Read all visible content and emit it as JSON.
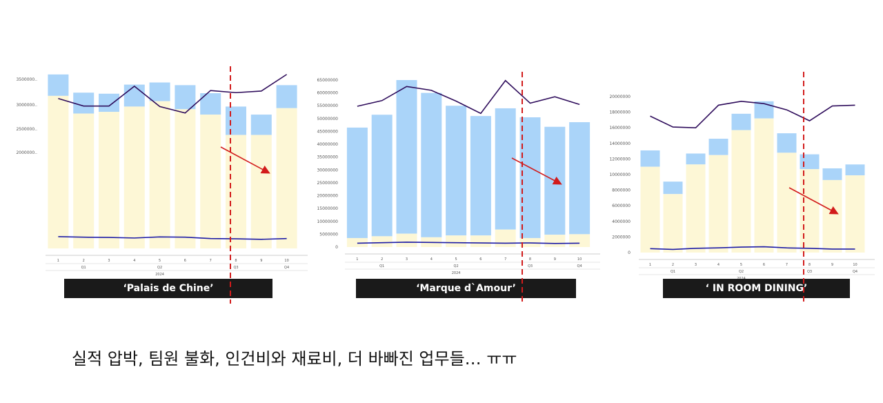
{
  "colors": {
    "bar_bottom": "#fdf7d6",
    "bar_top": "#aad4f9",
    "line_top": "#2e0c5b",
    "line_bottom": "#1b1aa6",
    "divider": "#d21b1b",
    "arrow": "#d21b1b",
    "label_bg": "#1a1a1a"
  },
  "caption": "실적 압박, 팀원 불화, 인건비와 재료비, 더 바빠진 업무들… ㅠㅠ",
  "chart_data": [
    {
      "type": "bar",
      "label": "‘Palais de Chine’",
      "categories": [
        "1",
        "2",
        "3",
        "4",
        "5",
        "6",
        "7",
        "8",
        "9",
        "10"
      ],
      "quarter_labels": [
        "Q1",
        "Q2",
        "Q3",
        "Q4"
      ],
      "year_label": "2024",
      "ytick_labels": [
        "3500000..",
        "3000000..",
        "2500000..",
        "2000000.."
      ],
      "ylim": [
        300000,
        3600000
      ],
      "series": [
        {
          "kind": "bar",
          "values": [
            3150000,
            2820000,
            2850000,
            2950000,
            3050000,
            2900000,
            2800000,
            2420000,
            2420000,
            2920000
          ]
        },
        {
          "kind": "bar",
          "values": [
            3550000,
            3210000,
            3190000,
            3360000,
            3400000,
            3350000,
            3200000,
            2950000,
            2800000,
            3350000
          ]
        },
        {
          "kind": "line",
          "values": [
            3100000,
            2960000,
            2960000,
            3330000,
            2950000,
            2830000,
            3250000,
            3210000,
            3240000,
            3550000
          ]
        },
        {
          "kind": "line",
          "values": [
            520000,
            510000,
            505000,
            495000,
            515000,
            510000,
            485000,
            480000,
            470000,
            485000
          ]
        }
      ]
    },
    {
      "type": "bar",
      "label": "‘Marque d`Amour’",
      "categories": [
        "1",
        "2",
        "3",
        "4",
        "5",
        "6",
        "7",
        "8",
        "9",
        "10"
      ],
      "quarter_labels": [
        "Q1",
        "Q2",
        "Q3",
        "Q4"
      ],
      "year_label": "2024",
      "ytick_labels": [
        "65000000",
        "60000000",
        "55000000",
        "50000000",
        "45000000",
        "40000000",
        "35000000",
        "30000000",
        "25000000",
        "20000000",
        "15000000",
        "10000000",
        "5000000",
        "0"
      ],
      "ylim": [
        0,
        65000000
      ],
      "series": [
        {
          "kind": "bar",
          "values": [
            3500000,
            4200000,
            5200000,
            3800000,
            4500000,
            4500000,
            6800000,
            3500000,
            4800000,
            5000000
          ]
        },
        {
          "kind": "bar",
          "values": [
            46500000,
            51500000,
            65000000,
            60000000,
            55000000,
            51000000,
            54000000,
            50500000,
            46800000,
            48600000
          ]
        },
        {
          "kind": "line",
          "values": [
            54800000,
            57000000,
            62500000,
            61000000,
            56800000,
            52000000,
            64800000,
            56000000,
            58500000,
            55500000
          ]
        },
        {
          "kind": "line",
          "values": [
            1500000,
            1700000,
            1900000,
            1800000,
            1700000,
            1600000,
            1500000,
            1600000,
            1400000,
            1500000
          ]
        }
      ]
    },
    {
      "type": "bar",
      "label": "‘ IN ROOM DINING’",
      "categories": [
        "1",
        "2",
        "3",
        "4",
        "5",
        "6",
        "7",
        "8",
        "9",
        "10"
      ],
      "quarter_labels": [
        "Q1",
        "Q2",
        "Q3",
        "Q4"
      ],
      "year_label": "2024",
      "ytick_labels": [
        "20000000",
        "18000000",
        "16000000",
        "14000000",
        "12000000",
        "10000000",
        "8000000",
        "6000000",
        "4000000",
        "2000000",
        "0"
      ],
      "ylim": [
        0,
        20000000
      ],
      "series": [
        {
          "kind": "bar",
          "values": [
            11000000,
            7500000,
            11300000,
            12500000,
            15700000,
            17200000,
            12800000,
            10700000,
            9300000,
            9900000
          ]
        },
        {
          "kind": "bar",
          "values": [
            13100000,
            9100000,
            12700000,
            14600000,
            17800000,
            19400000,
            15300000,
            12600000,
            10800000,
            11300000
          ]
        },
        {
          "kind": "line",
          "values": [
            17500000,
            16100000,
            16000000,
            18900000,
            19400000,
            19100000,
            18300000,
            16900000,
            18800000,
            18900000
          ]
        },
        {
          "kind": "line",
          "values": [
            500000,
            400000,
            550000,
            600000,
            700000,
            750000,
            600000,
            550000,
            450000,
            450000
          ]
        }
      ]
    }
  ]
}
